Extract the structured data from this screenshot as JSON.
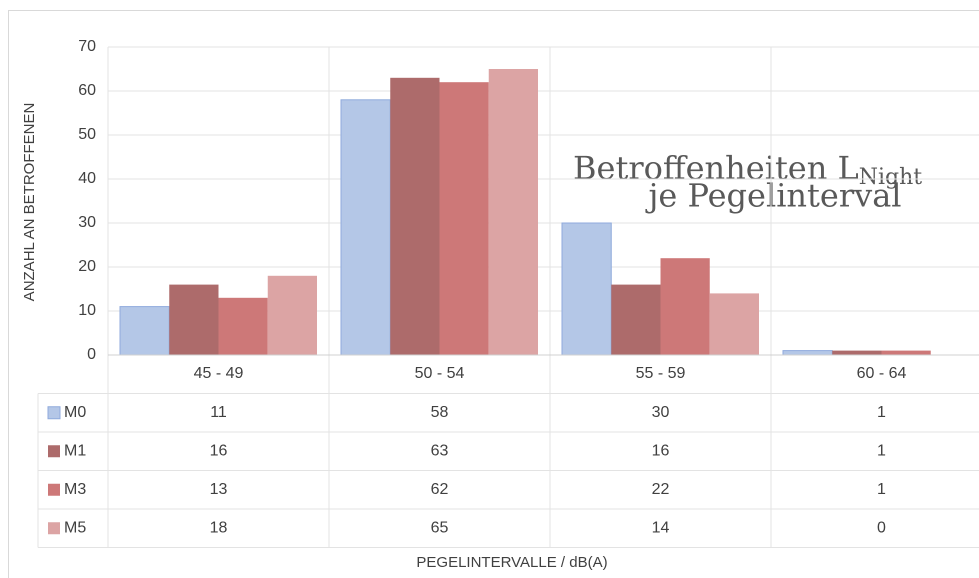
{
  "chart_data": {
    "type": "bar",
    "title": "Betroffenheiten L",
    "title_subscript": "Night",
    "title_line2": "je Pegelinterval",
    "y_label": "ANZAHL AN BETROFFENEN",
    "x_label": "PEGELINTERVALLE / dB(A)",
    "categories": [
      "45 - 49",
      "50 - 54",
      "55 - 59",
      "60 - 64"
    ],
    "series": [
      {
        "name": "M0",
        "color": "#b4c7e7",
        "values": [
          11,
          58,
          30,
          1
        ]
      },
      {
        "name": "M1",
        "color": "#ad6b6b",
        "values": [
          16,
          63,
          16,
          1
        ]
      },
      {
        "name": "M3",
        "color": "#cd7878",
        "values": [
          13,
          62,
          22,
          1
        ]
      },
      {
        "name": "M5",
        "color": "#dca4a4",
        "values": [
          18,
          65,
          14,
          0
        ]
      }
    ],
    "ylim": [
      0,
      70
    ],
    "yticks": [
      0,
      10,
      20,
      30,
      40,
      50,
      60,
      70
    ],
    "grid": true,
    "data_table": true
  }
}
